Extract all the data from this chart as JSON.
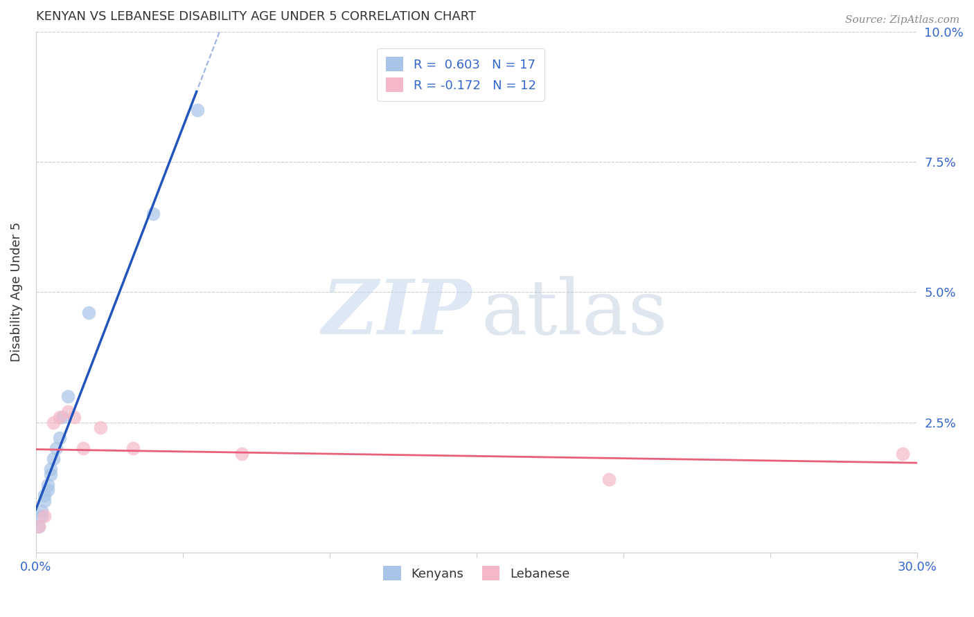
{
  "title": "KENYAN VS LEBANESE DISABILITY AGE UNDER 5 CORRELATION CHART",
  "source": "Source: ZipAtlas.com",
  "ylabel": "Disability Age Under 5",
  "xlim": [
    0.0,
    0.3
  ],
  "ylim": [
    0.0,
    0.1
  ],
  "xticks": [
    0.0,
    0.05,
    0.1,
    0.15,
    0.2,
    0.25,
    0.3
  ],
  "xtick_labels": [
    "0.0%",
    "",
    "",
    "",
    "",
    "",
    "30.0%"
  ],
  "yticks": [
    0.0,
    0.025,
    0.05,
    0.075,
    0.1
  ],
  "ytick_labels_right": [
    "",
    "2.5%",
    "5.0%",
    "7.5%",
    "10.0%"
  ],
  "kenyan_R": 0.603,
  "kenyan_N": 17,
  "lebanese_R": -0.172,
  "lebanese_N": 12,
  "kenyan_color": "#a8c4e8",
  "lebanese_color": "#f5b8c8",
  "kenyan_line_color": "#2255bb",
  "lebanese_line_color": "#e8607a",
  "kenyan_points_x": [
    0.001,
    0.002,
    0.002,
    0.003,
    0.003,
    0.004,
    0.004,
    0.005,
    0.005,
    0.006,
    0.007,
    0.008,
    0.009,
    0.011,
    0.018,
    0.04,
    0.055
  ],
  "kenyan_points_y": [
    0.005,
    0.007,
    0.008,
    0.01,
    0.011,
    0.012,
    0.013,
    0.015,
    0.016,
    0.018,
    0.02,
    0.022,
    0.026,
    0.03,
    0.046,
    0.065,
    0.085
  ],
  "lebanese_points_x": [
    0.001,
    0.003,
    0.006,
    0.008,
    0.011,
    0.013,
    0.016,
    0.022,
    0.033,
    0.07,
    0.195,
    0.295
  ],
  "lebanese_points_y": [
    0.005,
    0.007,
    0.025,
    0.026,
    0.027,
    0.026,
    0.02,
    0.024,
    0.02,
    0.019,
    0.014,
    0.019
  ],
  "watermark_zip": "ZIP",
  "watermark_atlas": "atlas",
  "background_color": "#ffffff",
  "grid_color": "#cccccc",
  "axis_color": "#cccccc",
  "label_color": "#3366cc",
  "title_color": "#333333",
  "source_color": "#888888"
}
